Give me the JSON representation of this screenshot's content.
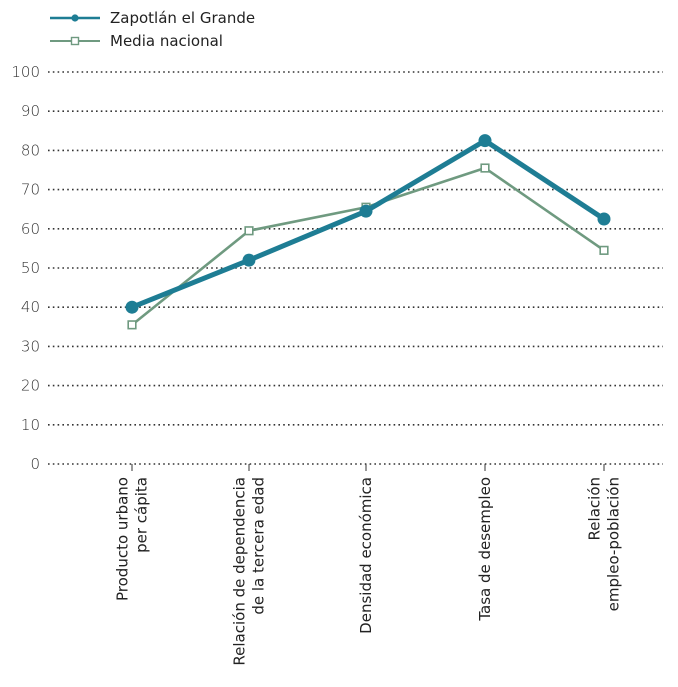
{
  "chart_data": {
    "type": "line",
    "categories": [
      [
        "Producto urbano",
        "per cápita"
      ],
      [
        "Relación de dependencia",
        "de la tercera edad"
      ],
      [
        "Densidad económica"
      ],
      [
        "Tasa de desempleo"
      ],
      [
        "Relación",
        "empleo-población"
      ]
    ],
    "series": [
      {
        "name": "Zapotlán el Grande",
        "values": [
          40,
          52,
          64.5,
          82.5,
          62.5
        ],
        "color": "#1e7d94",
        "marker": "filled-circle"
      },
      {
        "name": "Media nacional",
        "values": [
          35.5,
          59.5,
          65.5,
          75.5,
          54.5
        ],
        "color": "#6f9a80",
        "marker": "open-square"
      }
    ],
    "ylim": [
      0,
      100
    ],
    "yticks": [
      0,
      10,
      20,
      30,
      40,
      50,
      60,
      70,
      80,
      90,
      100
    ],
    "grid": "dotted horizontal",
    "legend_position": "top-left"
  }
}
